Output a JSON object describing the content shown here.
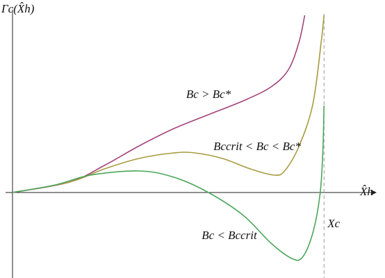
{
  "chart_data": {
    "type": "line",
    "ylabel": "Γc(X̂h)",
    "xlabel": "X̂h",
    "xlim": [
      0,
      1.16
    ],
    "ylim": [
      -1.23,
      2.57
    ],
    "vline": {
      "x": 1.0,
      "label": "Xc"
    },
    "series": [
      {
        "name": "Bc > Bc*",
        "color": "#a3437c",
        "x": [
          0,
          0.183,
          0.295,
          0.406,
          0.518,
          0.629,
          0.741,
          0.83,
          0.886,
          0.92,
          0.938
        ],
        "values": [
          0,
          0.15,
          0.39,
          0.67,
          0.92,
          1.12,
          1.32,
          1.52,
          1.77,
          2.17,
          2.55
        ]
      },
      {
        "name": "Bccrit < Bc < Bc*",
        "color": "#a89a3e",
        "x": [
          0,
          0.183,
          0.295,
          0.406,
          0.518,
          0.585,
          0.674,
          0.763,
          0.842,
          0.875,
          0.92,
          0.964,
          0.991,
          1.0
        ],
        "values": [
          0,
          0.15,
          0.34,
          0.49,
          0.57,
          0.57,
          0.49,
          0.34,
          0.25,
          0.32,
          0.67,
          1.27,
          2.17,
          2.55
        ]
      },
      {
        "name": "Bc < Bccrit",
        "color": "#4ba65b",
        "x": [
          0,
          0.138,
          0.25,
          0.406,
          0.518,
          0.629,
          0.741,
          0.83,
          0.897,
          0.931,
          0.964,
          0.987,
          0.996,
          1.0
        ],
        "values": [
          0,
          0.11,
          0.25,
          0.31,
          0.22,
          0,
          -0.33,
          -0.73,
          -0.95,
          -0.93,
          -0.58,
          -0.03,
          0.57,
          1.25
        ]
      }
    ]
  }
}
